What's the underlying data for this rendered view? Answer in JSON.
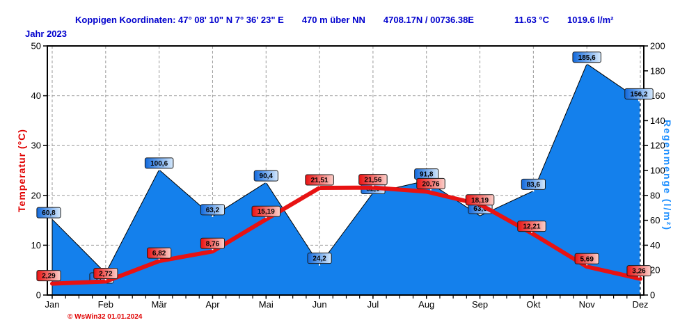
{
  "header": {
    "station": "Koppigen  Koordinaten: 47° 08' 10\" N  7° 36' 23\" E",
    "altitude": "470 m über NN",
    "position": "4708.17N / 00736.38E",
    "mean_temperature": "11.63 °C",
    "total_rain": "1019.6 l/m²"
  },
  "year_label": "Jahr  2023",
  "watermark": "© WsWin32  01.01.2024",
  "axes": {
    "left": {
      "title": "Temperatur  (°C)",
      "ticks": [
        0,
        10,
        20,
        30,
        40,
        50
      ],
      "range": [
        0,
        50
      ],
      "color": "#e00000"
    },
    "right": {
      "title": "Regenmenge  (l/m²)",
      "ticks": [
        0,
        20,
        40,
        60,
        80,
        100,
        120,
        140,
        160,
        180,
        200
      ],
      "range": [
        0,
        200
      ],
      "color": "#1e8fff"
    },
    "bottom": {
      "months": [
        "Jan",
        "Feb",
        "Mär",
        "Apr",
        "Mai",
        "Jun",
        "Jul",
        "Aug",
        "Sep",
        "Okt",
        "Nov",
        "Dez"
      ]
    }
  },
  "chart_data": {
    "type": "area+line",
    "categories": [
      "Jan",
      "Feb",
      "Mär",
      "Apr",
      "Mai",
      "Jun",
      "Jul",
      "Aug",
      "Sep",
      "Okt",
      "Nov",
      "Dez"
    ],
    "grid": true,
    "series": [
      {
        "name": "Regenmenge",
        "type": "area",
        "unit": "l/m²",
        "axis": "right",
        "ylim": [
          0,
          200
        ],
        "values": [
          60.8,
          17.6,
          100.6,
          63.2,
          90.4,
          24.2,
          82.0,
          91.8,
          63.6,
          83.6,
          185.6,
          156.2
        ],
        "labels": [
          "60,8",
          "17,6",
          "100,6",
          "63,2",
          "90,4",
          "24,2",
          "82,0",
          "91,8",
          "63,6",
          "83,6",
          "185,6",
          "156,2"
        ],
        "label_occluded": [
          false,
          true,
          false,
          false,
          false,
          false,
          true,
          false,
          true,
          false,
          false,
          false
        ]
      },
      {
        "name": "Temperatur",
        "type": "line",
        "unit": "°C",
        "axis": "left",
        "ylim": [
          0,
          50
        ],
        "values": [
          2.29,
          2.72,
          6.82,
          8.76,
          15.19,
          21.51,
          21.56,
          20.76,
          18.19,
          12.21,
          5.69,
          3.26
        ],
        "labels": [
          "2,29",
          "2,72",
          "6,82",
          "8,76",
          "15,19",
          "21,51",
          "21,56",
          "20,76",
          "18,19",
          "12,21",
          "5,69",
          "3,26"
        ]
      }
    ],
    "marker_line": {
      "month": "Dez",
      "style": "white-dashed"
    }
  },
  "colors": {
    "header_text": "#0000cd",
    "area_fill": "#1480ec",
    "temp_line": "#e81212",
    "grid": "#999999",
    "label_red_left": "#ea1010",
    "label_red_right": "#fcd0ca",
    "label_blue_left": "#1068dc",
    "label_blue_right": "#d6e9fc"
  }
}
